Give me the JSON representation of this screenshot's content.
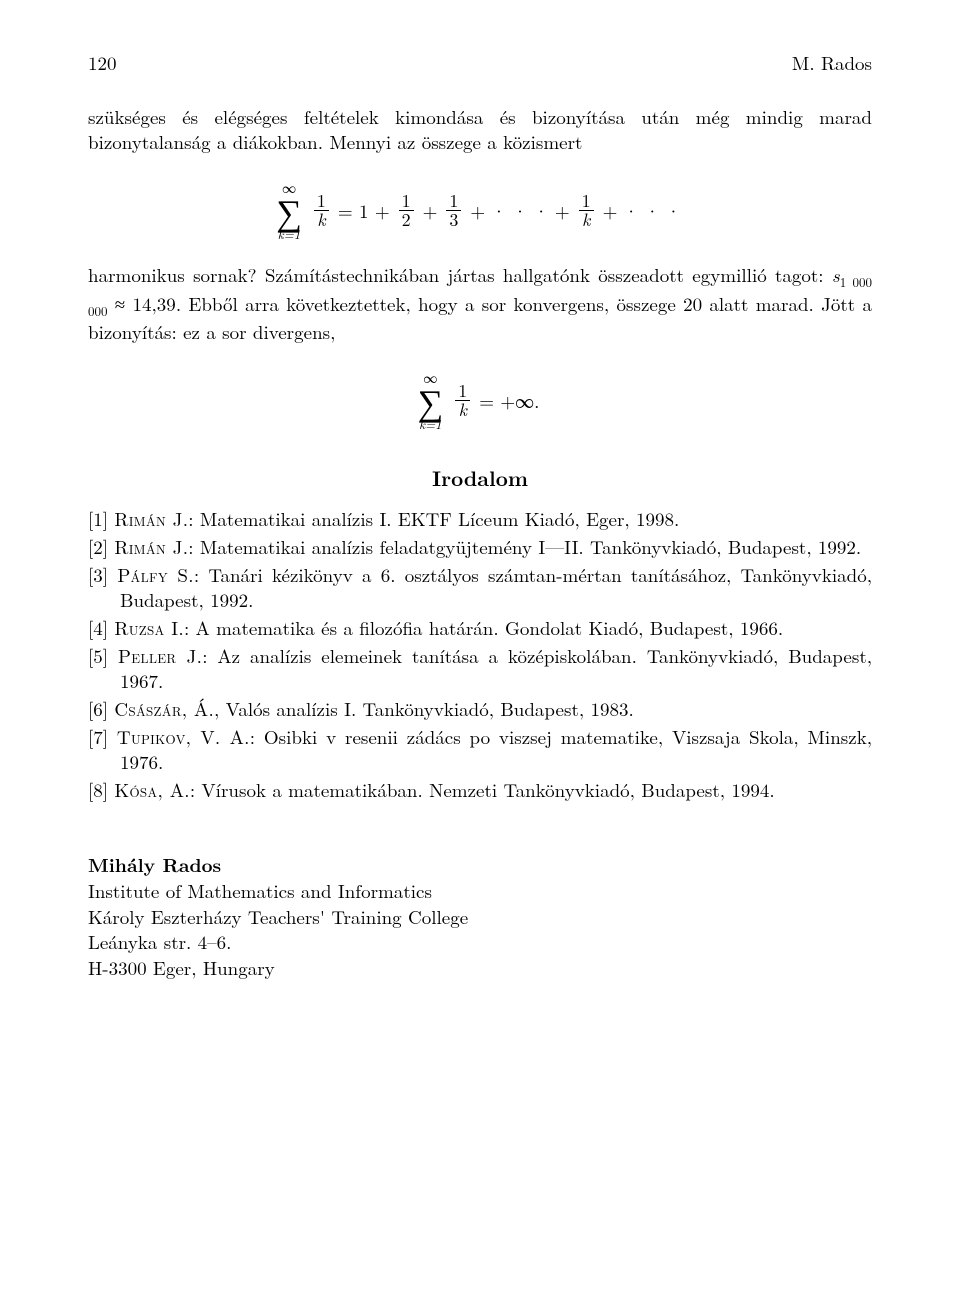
{
  "header": {
    "page_number": "120",
    "running_head": "M. Rados"
  },
  "body": {
    "para1": "szükséges és elégséges feltételek kimondása és bizonyítása után még mindig marad bizonytalanság a diákokban. Mennyi az összege a közismert",
    "para2a": "harmonikus sornak? Számítástechnikában jártas hallgatónk összeadott egymillió tagot: ",
    "s_label": "s",
    "s_sub": "1 000 000",
    "approx": " ≈ 14,39",
    "para2b": ". Ebből arra következtettek, hogy a sor konvergens, összege 20 alatt marad. Jött a bizonyítás: ez a sor divergens,"
  },
  "eq1": {
    "sum_top": "∞",
    "sum_bot": "k=1",
    "frac1_num": "1",
    "frac1_den": "k",
    "eq": "= 1 +",
    "frac2_num": "1",
    "frac2_den": "2",
    "plus1": "+",
    "frac3_num": "1",
    "frac3_den": "3",
    "dots1": "+ · · · +",
    "frac4_num": "1",
    "frac4_den": "k",
    "dots2": "+ · · ·"
  },
  "eq2": {
    "sum_top": "∞",
    "sum_bot": "k=1",
    "frac_num": "1",
    "frac_den": "k",
    "rhs": "=  +∞."
  },
  "irodalom": {
    "title": "Irodalom",
    "refs": [
      {
        "num": "[1]",
        "auth": "Rimán J.",
        "rest": ": Matematikai analízis I. EKTF Líceum Kiadó, Eger, 1998."
      },
      {
        "num": "[2]",
        "auth": "Rimán J.",
        "rest": ": Matematikai analízis feladatgyüjtemény I—II. Tankönyvkiadó, Budapest, 1992."
      },
      {
        "num": "[3]",
        "auth": "Pálfy S.",
        "rest": ": Tanári kézikönyv a 6. osztályos számtan-mértan tanításához, Tankönyvkiadó, Budapest, 1992."
      },
      {
        "num": "[4]",
        "auth": "Ruzsa I.",
        "rest": ": A matematika és a filozófia határán. Gondolat Kiadó, Budapest, 1966."
      },
      {
        "num": "[5]",
        "auth": "Peller J.",
        "rest": ": Az analízis elemeinek tanítása a középiskolában. Tankönyvkiadó, Budapest, 1967."
      },
      {
        "num": "[6]",
        "auth": "Császár, Á.",
        "rest": ", Valós analízis I. Tankönyvkiadó, Budapest, 1983."
      },
      {
        "num": "[7]",
        "auth": "Tupikov, V. A.",
        "rest": ": Osibki v resenii zádács po viszsej matematike, Viszsaja Skola, Minszk, 1976."
      },
      {
        "num": "[8]",
        "auth": "Kósa, A.",
        "rest": ": Vírusok a matematikában. Nemzeti Tankönyvkiadó, Budapest, 1994."
      }
    ]
  },
  "affil": {
    "name": "Mihály Rados",
    "line1": "Institute of Mathematics and Informatics",
    "line2": "Károly Eszterházy Teachers' Training College",
    "line3": "Leányka str. 4–6.",
    "line4": "H-3300 Eger, Hungary"
  }
}
